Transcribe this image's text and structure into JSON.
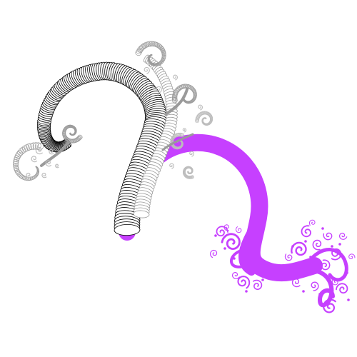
{
  "figure": {
    "colors": {
      "background": "#ffffff",
      "black_ring_stroke": "#000000",
      "ring_fill": "#ffffff",
      "gray_stroke": "#9a9a9a",
      "light_gray_stroke": "#bdbdbd",
      "purple": "#c640ff",
      "purple_dark": "#b030ee"
    }
  }
}
